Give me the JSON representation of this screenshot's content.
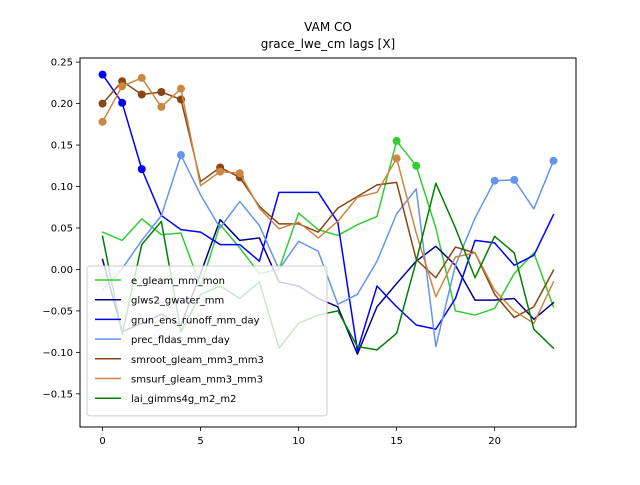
{
  "chart_data": {
    "type": "line",
    "title": "VAM CO",
    "subtitle": "grace_lwe_cm lags [X]",
    "xlabel": "",
    "ylabel": "",
    "xlim": [
      -1.15,
      24.15
    ],
    "ylim": [
      -0.19,
      0.255
    ],
    "xticks": [
      0,
      5,
      10,
      15,
      20
    ],
    "xtick_labels": [
      "0",
      "5",
      "10",
      "15",
      "20"
    ],
    "yticks": [
      -0.15,
      -0.1,
      -0.05,
      0.0,
      0.05,
      0.1,
      0.15,
      0.2,
      0.25
    ],
    "ytick_labels": [
      "−0.15",
      "−0.10",
      "−0.05",
      "0.00",
      "0.05",
      "0.10",
      "0.15",
      "0.20",
      "0.25"
    ],
    "grid": false,
    "legend_position": "lower-left",
    "x": [
      0,
      1,
      2,
      3,
      4,
      5,
      6,
      7,
      8,
      9,
      10,
      11,
      12,
      13,
      14,
      15,
      16,
      17,
      18,
      19,
      20,
      21,
      22,
      23
    ],
    "series": [
      {
        "name": "e_gleam_mm_mon",
        "color": "#32cd32",
        "values": [
          0.045,
          0.035,
          0.061,
          0.042,
          0.044,
          -0.02,
          0.054,
          0.026,
          -0.005,
          0.0,
          0.068,
          0.048,
          0.041,
          0.054,
          0.064,
          0.155,
          0.125,
          0.05,
          -0.05,
          -0.055,
          -0.047,
          -0.005,
          0.02,
          -0.045
        ],
        "markers": [
          15,
          16
        ]
      },
      {
        "name": "glws2_gwater_mm",
        "color": "#00008b",
        "values": [
          0.012,
          -0.075,
          -0.065,
          -0.054,
          -0.067,
          -0.005,
          0.06,
          0.035,
          0.038,
          -0.015,
          -0.02,
          -0.035,
          -0.045,
          -0.102,
          -0.045,
          -0.017,
          0.01,
          0.028,
          0.005,
          -0.037,
          -0.037,
          -0.035,
          -0.06,
          -0.04
        ],
        "markers": []
      },
      {
        "name": "grun_ens_runoff_mm_day",
        "color": "#0000ff",
        "values": [
          0.235,
          0.201,
          0.121,
          0.065,
          0.048,
          0.045,
          0.03,
          0.03,
          0.01,
          0.093,
          0.093,
          0.093,
          0.057,
          -0.098,
          -0.02,
          -0.045,
          -0.067,
          -0.072,
          -0.035,
          0.035,
          0.032,
          0.005,
          0.017,
          0.066
        ],
        "markers": [
          0,
          1,
          2
        ]
      },
      {
        "name": "prec_fldas_mm_day",
        "color": "#6495ed",
        "values": [
          -0.025,
          0.001,
          0.035,
          0.065,
          0.138,
          0.09,
          0.05,
          0.082,
          0.053,
          0.0,
          0.034,
          0.022,
          -0.042,
          -0.03,
          0.01,
          0.067,
          0.097,
          -0.093,
          0.005,
          0.062,
          0.107,
          0.108,
          0.073,
          0.131
        ],
        "markers": [
          4,
          20,
          21,
          23
        ]
      },
      {
        "name": "smroot_gleam_mm3_mm3",
        "color": "#8b4513",
        "values": [
          0.2,
          0.227,
          0.211,
          0.214,
          0.205,
          0.106,
          0.123,
          0.111,
          0.076,
          0.055,
          0.055,
          0.045,
          0.074,
          0.088,
          0.102,
          0.105,
          0.012,
          -0.01,
          0.027,
          0.02,
          -0.03,
          -0.058,
          -0.045,
          -0.001
        ],
        "markers": [
          0,
          1,
          2,
          3,
          4,
          6,
          7
        ]
      },
      {
        "name": "smsurf_gleam_mm3_mm3",
        "color": "#cd853f",
        "values": [
          0.178,
          0.221,
          0.231,
          0.196,
          0.218,
          0.101,
          0.118,
          0.116,
          0.074,
          0.049,
          0.057,
          0.038,
          0.058,
          0.087,
          0.093,
          0.134,
          0.044,
          -0.033,
          0.015,
          0.02,
          -0.025,
          -0.05,
          -0.065,
          -0.015
        ],
        "markers": [
          0,
          1,
          2,
          3,
          4,
          6,
          7,
          15
        ]
      },
      {
        "name": "lai_gimms4g_m2_m2",
        "color": "#008000",
        "values": [
          0.04,
          -0.078,
          0.03,
          0.058,
          -0.075,
          -0.03,
          -0.02,
          -0.035,
          -0.015,
          -0.095,
          -0.065,
          -0.055,
          -0.05,
          -0.093,
          -0.097,
          -0.077,
          0.01,
          0.104,
          0.05,
          -0.01,
          0.04,
          0.02,
          -0.072,
          -0.095
        ],
        "markers": []
      }
    ]
  }
}
